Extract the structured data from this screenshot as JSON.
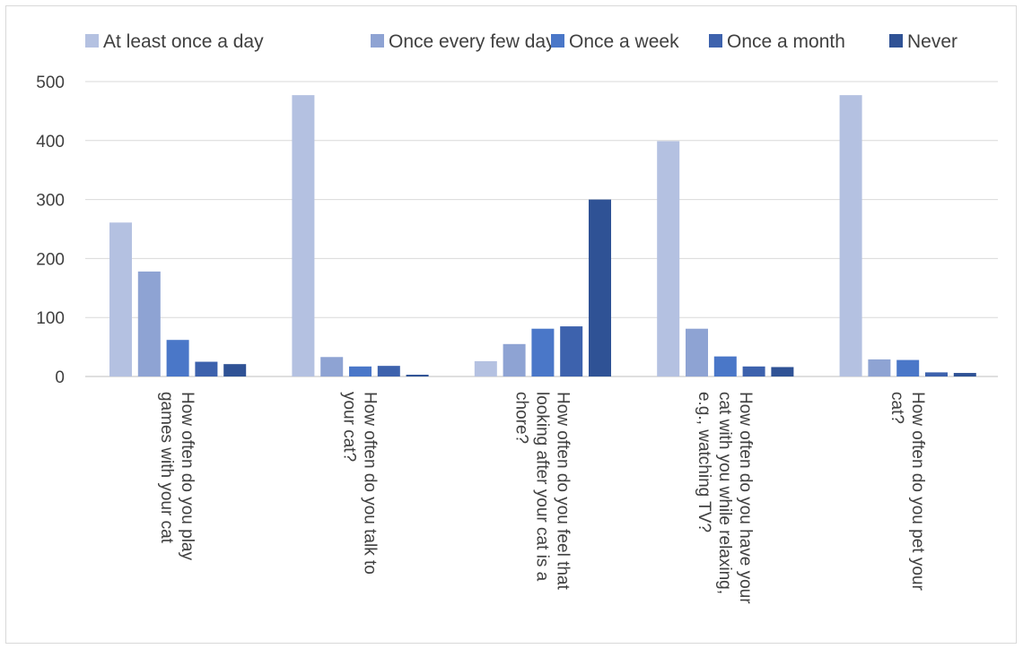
{
  "chart_data": {
    "type": "bar",
    "title": "",
    "xlabel": "",
    "ylabel": "",
    "ylim": [
      0,
      500
    ],
    "yticks": [
      0,
      100,
      200,
      300,
      400,
      500
    ],
    "grid": true,
    "legend_position": "top",
    "categories": [
      [
        "How often do you play",
        "games with your cat"
      ],
      [
        "How often do you talk to",
        "your cat?"
      ],
      [
        "How often do you feel that",
        "looking after your cat is a",
        "chore?"
      ],
      [
        "How often do you have your",
        "cat with you while relaxing,",
        "e.g., watching TV?"
      ],
      [
        "How often do you pet your",
        "cat?"
      ]
    ],
    "series": [
      {
        "name": "At least once a day",
        "color": "#b4c1e1",
        "values": [
          261,
          477,
          26,
          399,
          477
        ]
      },
      {
        "name": "Once every few days",
        "color": "#8ea3d3",
        "values": [
          178,
          33,
          55,
          81,
          29
        ]
      },
      {
        "name": "Once a week",
        "color": "#4a77c8",
        "values": [
          62,
          17,
          81,
          34,
          28
        ]
      },
      {
        "name": "Once a month",
        "color": "#3d62ad",
        "values": [
          25,
          18,
          85,
          17,
          7
        ]
      },
      {
        "name": "Never",
        "color": "#2f5295",
        "values": [
          21,
          3,
          300,
          16,
          6
        ]
      }
    ]
  }
}
